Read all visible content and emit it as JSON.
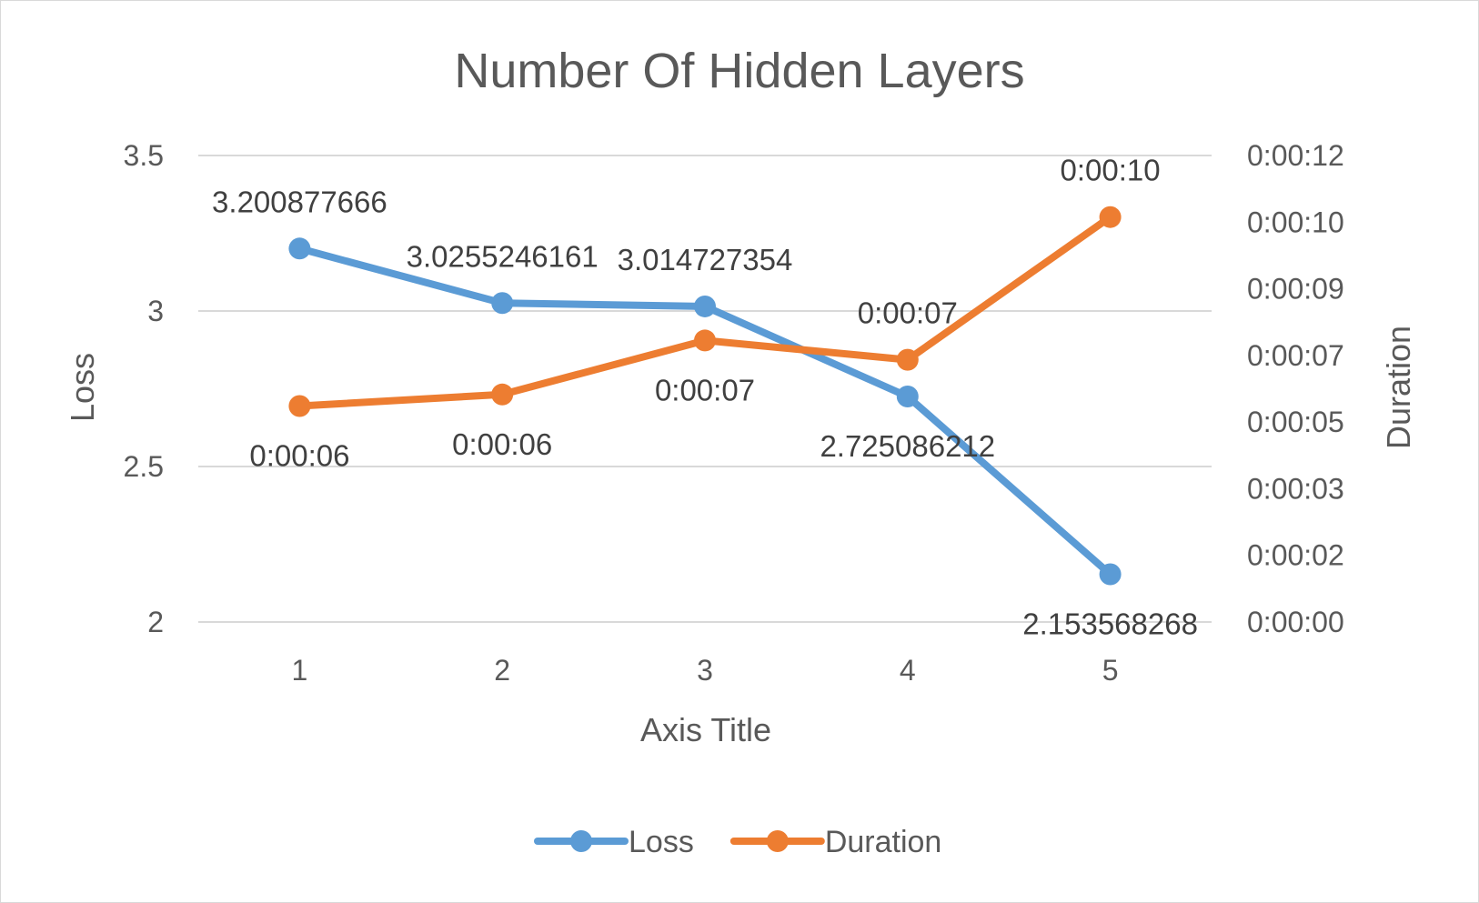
{
  "chart_data": {
    "type": "line",
    "title": "Number Of Hidden Layers",
    "xlabel": "Axis Title",
    "ylabel": "Loss",
    "y2label": "Duration",
    "categories": [
      "1",
      "2",
      "3",
      "4",
      "5"
    ],
    "ylim": [
      2,
      3.5
    ],
    "yticks": [
      "2",
      "2.5",
      "3",
      "3.5"
    ],
    "y2lim_seconds": [
      0,
      12.096
    ],
    "y2ticks": [
      "0:00:00",
      "0:00:02",
      "0:00:03",
      "0:00:05",
      "0:00:07",
      "0:00:09",
      "0:00:10",
      "0:00:12"
    ],
    "grid": true,
    "legend_position": "bottom",
    "series": [
      {
        "name": "Loss",
        "axis": "primary",
        "color": "#5b9bd5",
        "values": [
          3.200877666,
          3.0255246161,
          3.014727354,
          2.725086212,
          2.153568268
        ],
        "labels": [
          "3.200877666",
          "3.0255246161",
          "3.014727354",
          "2.725086212",
          "2.153568268"
        ],
        "label_positions": [
          "above",
          "above",
          "above",
          "below",
          "below"
        ]
      },
      {
        "name": "Duration",
        "axis": "secondary",
        "color": "#ed7d31",
        "values_seconds": [
          5.6,
          5.9,
          7.3,
          6.8,
          10.5
        ],
        "labels": [
          "0:00:06",
          "0:00:06",
          "0:00:07",
          "0:00:07",
          "0:00:10"
        ],
        "label_positions": [
          "below",
          "below",
          "below",
          "above",
          "above"
        ]
      }
    ]
  }
}
